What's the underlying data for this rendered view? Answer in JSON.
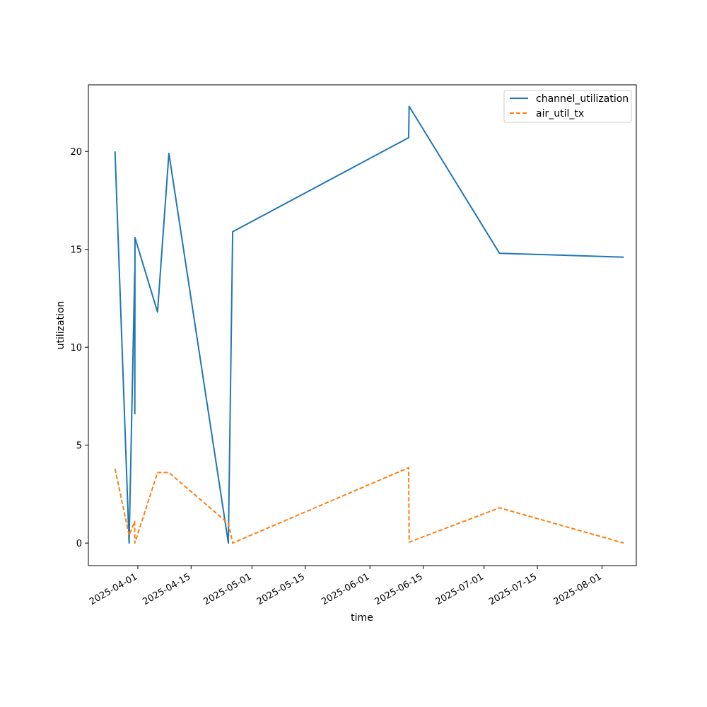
{
  "chart_data": {
    "type": "line",
    "title": "",
    "xlabel": "time",
    "ylabel": "utilization",
    "x_tick_labels": [
      "2025-04-01",
      "2025-04-15",
      "2025-05-01",
      "2025-05-15",
      "2025-06-01",
      "2025-06-15",
      "2025-07-01",
      "2025-07-15",
      "2025-08-01"
    ],
    "y_tick_labels": [
      "0",
      "5",
      "10",
      "15",
      "20"
    ],
    "ylim": [
      -1.15,
      23.4
    ],
    "xlim": [
      "2025-03-19",
      "2025-08-10"
    ],
    "grid": false,
    "legend_position": "top-right",
    "series": [
      {
        "name": "channel_utilization",
        "color": "#1f77b4",
        "style": "solid",
        "points": [
          [
            "2025-03-26T00:00",
            20.0
          ],
          [
            "2025-03-29T17:00",
            0.0
          ],
          [
            "2025-03-31T04:00",
            13.8
          ],
          [
            "2025-03-31T05:00",
            6.6
          ],
          [
            "2025-03-31T06:00",
            15.6
          ],
          [
            "2025-04-06T04:00",
            11.8
          ],
          [
            "2025-04-09T04:00",
            19.9
          ],
          [
            "2025-04-24T19:00",
            0.0
          ],
          [
            "2025-04-25T22:00",
            15.9
          ],
          [
            "2025-06-11T04:00",
            20.7
          ],
          [
            "2025-06-11T07:00",
            22.3
          ],
          [
            "2025-07-05T01:00",
            14.8
          ],
          [
            "2025-08-06T17:00",
            14.6
          ]
        ]
      },
      {
        "name": "air_util_tx",
        "color": "#ff7f0e",
        "style": "dashed",
        "points": [
          [
            "2025-03-26T00:00",
            3.8
          ],
          [
            "2025-03-29T17:00",
            0.4
          ],
          [
            "2025-03-31T04:00",
            1.1
          ],
          [
            "2025-03-31T05:00",
            0.0
          ],
          [
            "2025-04-06T04:00",
            3.6
          ],
          [
            "2025-04-09T04:00",
            3.6
          ],
          [
            "2025-04-24T19:00",
            1.0
          ],
          [
            "2025-04-25T22:00",
            0.0
          ],
          [
            "2025-06-11T04:00",
            3.85
          ],
          [
            "2025-06-11T07:00",
            0.05
          ],
          [
            "2025-07-05T01:00",
            1.8
          ],
          [
            "2025-08-06T17:00",
            0.0
          ]
        ]
      }
    ]
  }
}
